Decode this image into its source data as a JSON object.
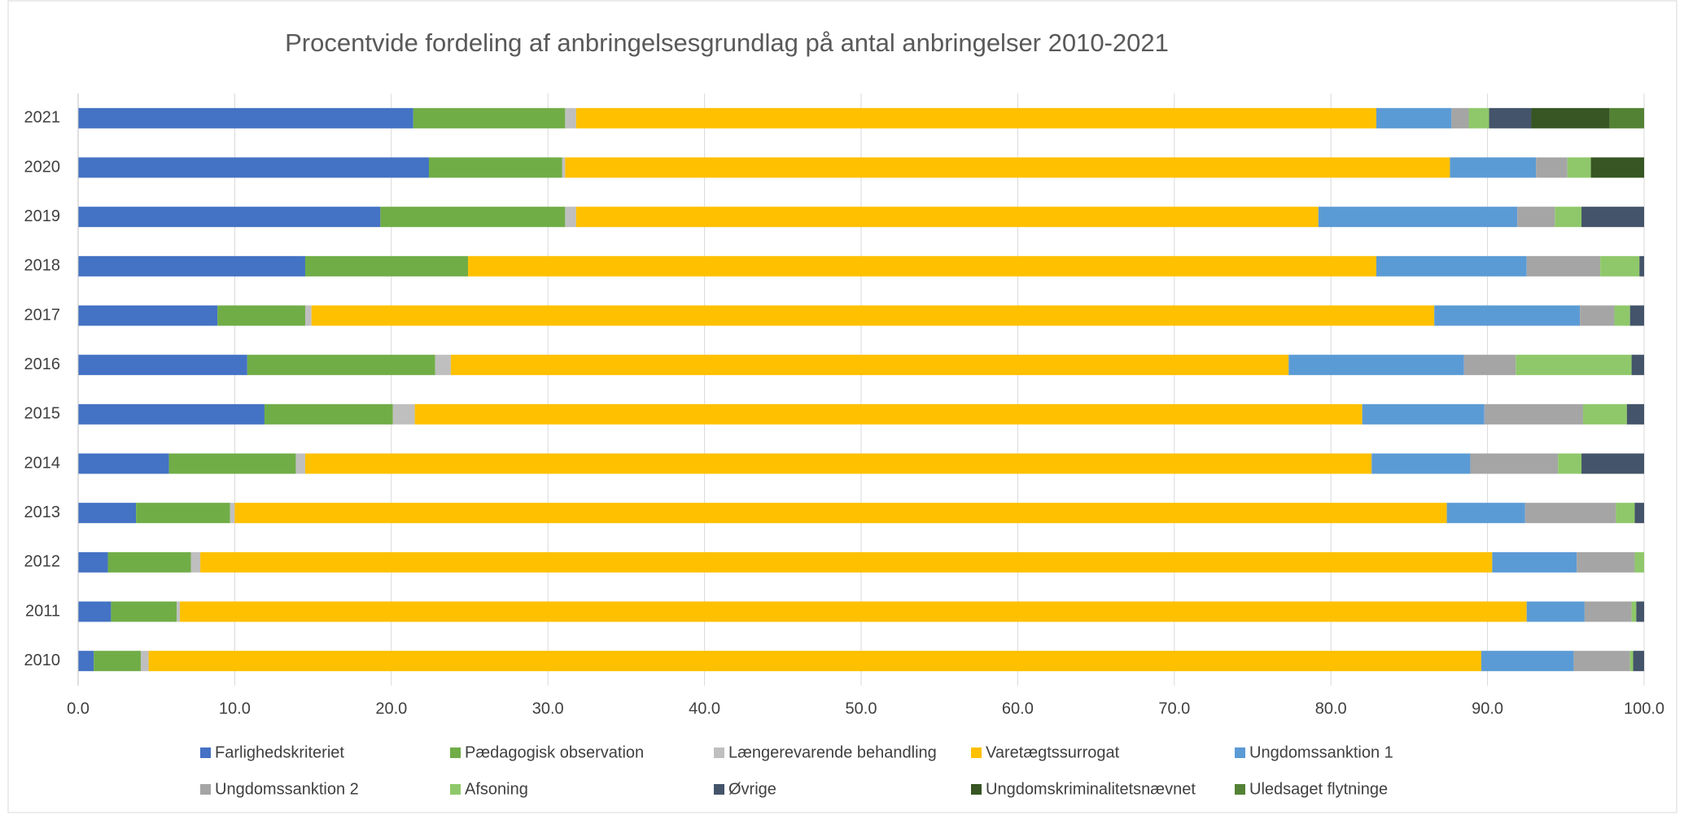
{
  "chart_data": {
    "type": "stacked_barh",
    "title": "Procentvide fordeling af anbringelsesgrundlag på antal anbringelser 2010-2021",
    "categories": [
      "2010",
      "2011",
      "2012",
      "2013",
      "2014",
      "2015",
      "2016",
      "2017",
      "2018",
      "2019",
      "2020",
      "2021"
    ],
    "series": [
      {
        "name": "Farlighedskriteriet",
        "color": "#4472c4",
        "values": [
          1.0,
          2.1,
          1.9,
          3.7,
          5.8,
          11.9,
          10.8,
          8.9,
          14.5,
          19.3,
          22.4,
          21.4
        ]
      },
      {
        "name": "Pædagogisk observation",
        "color": "#70ad47",
        "values": [
          3.0,
          4.2,
          5.3,
          6.0,
          8.1,
          8.2,
          12.0,
          5.6,
          10.4,
          11.8,
          8.5,
          9.7
        ]
      },
      {
        "name": "Længerevarende behandling",
        "color": "#bfbfbf",
        "values": [
          0.5,
          0.2,
          0.6,
          0.3,
          0.6,
          1.4,
          1.0,
          0.4,
          0,
          0.7,
          0.2,
          0.7
        ]
      },
      {
        "name": "Varetægtssurrogat",
        "color": "#ffc000",
        "values": [
          85.1,
          86.0,
          82.5,
          77.4,
          68.1,
          60.5,
          53.5,
          71.7,
          58.0,
          47.4,
          56.5,
          51.1
        ]
      },
      {
        "name": "Ungdomssanktion 1",
        "color": "#5b9bd5",
        "values": [
          5.9,
          3.7,
          5.4,
          5.0,
          6.3,
          7.8,
          11.2,
          9.3,
          9.6,
          12.7,
          5.5,
          4.8
        ]
      },
      {
        "name": "Ungdomssanktion 2",
        "color": "#a5a5a5",
        "values": [
          3.6,
          3.0,
          3.7,
          5.8,
          5.6,
          6.3,
          3.3,
          2.2,
          4.7,
          2.4,
          2.0,
          1.1
        ]
      },
      {
        "name": "Afsoning",
        "color": "#8fc86a",
        "values": [
          0.2,
          0.3,
          0.6,
          1.2,
          1.5,
          2.8,
          7.4,
          1.0,
          2.5,
          1.7,
          1.5,
          1.3
        ]
      },
      {
        "name": "Øvrige",
        "color": "#44546a",
        "values": [
          0.7,
          0.5,
          0,
          0.6,
          4.0,
          1.1,
          0.8,
          0.9,
          0.3,
          4.0,
          0,
          2.7
        ]
      },
      {
        "name": "Ungdomskriminalitetsnævnet",
        "color": "#375623",
        "values": [
          0,
          0,
          0,
          0,
          0,
          0,
          0,
          0,
          0,
          0,
          3.4,
          5.0
        ]
      },
      {
        "name": "Uledsaget flytninge",
        "color": "#548235",
        "values": [
          0,
          0,
          0,
          0,
          0,
          0,
          0,
          0,
          0,
          0,
          0,
          2.2
        ]
      }
    ],
    "xlim": [
      0,
      100
    ],
    "xticks": [
      {
        "value": 0,
        "label": "0.0"
      },
      {
        "value": 10,
        "label": "10.0"
      },
      {
        "value": 20,
        "label": "20.0"
      },
      {
        "value": 30,
        "label": "30.0"
      },
      {
        "value": 40,
        "label": "40.0"
      },
      {
        "value": 50,
        "label": "50.0"
      },
      {
        "value": 60,
        "label": "60.0"
      },
      {
        "value": 70,
        "label": "70.0"
      },
      {
        "value": 80,
        "label": "80.0"
      },
      {
        "value": 90,
        "label": "90.0"
      },
      {
        "value": 100,
        "label": "100.0"
      }
    ],
    "grid": true,
    "legend": "bottom"
  }
}
